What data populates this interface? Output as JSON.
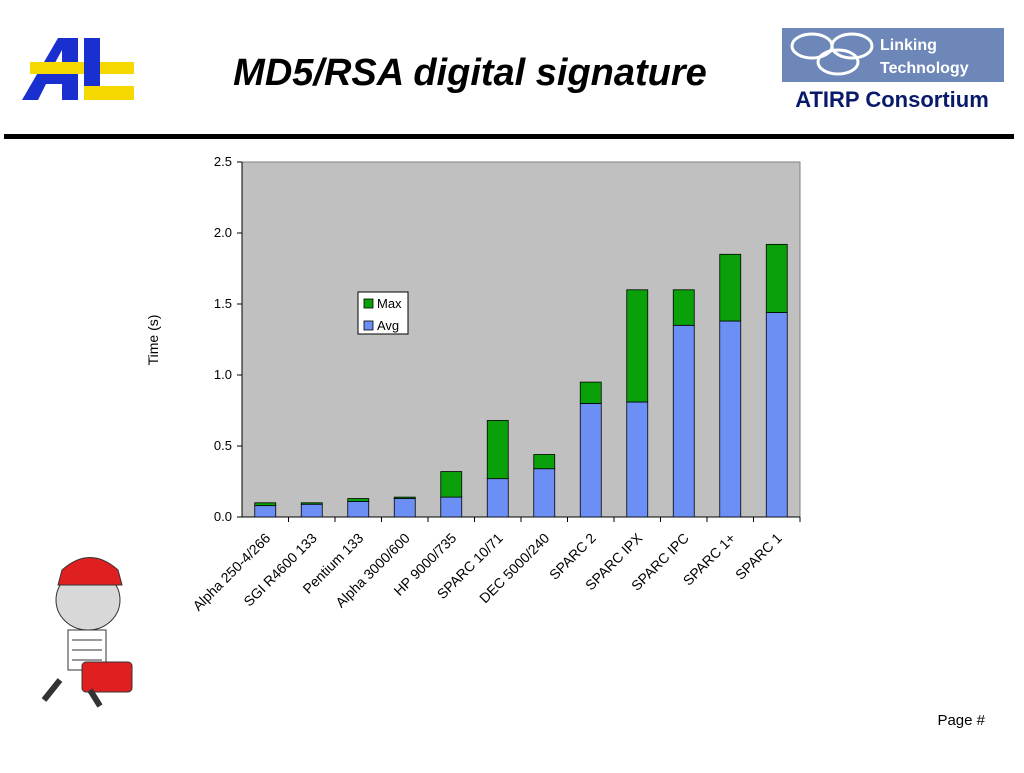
{
  "slide": {
    "title": "MD5/RSA digital signature",
    "logo_left": "ARL",
    "logo_right_line1": "Linking",
    "logo_right_line2": "Technology",
    "consortium": "ATIRP Consortium",
    "footer": "Page #"
  },
  "chart_data": {
    "type": "bar",
    "stacked": true,
    "y_label": "Time (s)",
    "categories": [
      "Alpha 250-4/266",
      "SGI R4600 133",
      "Pentium 133",
      "Alpha 3000/600",
      "HP 9000/735",
      "SPARC 10/71",
      "DEC 5000/240",
      "SPARC 2",
      "SPARC IPX",
      "SPARC IPC",
      "SPARC 1+",
      "SPARC 1"
    ],
    "series": [
      {
        "name": "Avg",
        "color": "#6b8ff5",
        "values": [
          0.08,
          0.09,
          0.11,
          0.13,
          0.14,
          0.27,
          0.34,
          0.8,
          0.81,
          1.35,
          1.38,
          1.44
        ]
      },
      {
        "name": "Max",
        "color": "#0aa00a",
        "values": [
          0.02,
          0.01,
          0.02,
          0.01,
          0.18,
          0.41,
          0.1,
          0.15,
          0.79,
          0.25,
          0.47,
          0.48
        ]
      }
    ],
    "ylim": [
      0,
      2.5
    ],
    "yticks": [
      {
        "value": 0,
        "label": "0.0"
      },
      0.5,
      {
        "value": 1,
        "label": "1.0"
      },
      1.5,
      {
        "value": 2,
        "label": "2.0"
      },
      2.5
    ],
    "plot_background": "#c0c0c0"
  }
}
